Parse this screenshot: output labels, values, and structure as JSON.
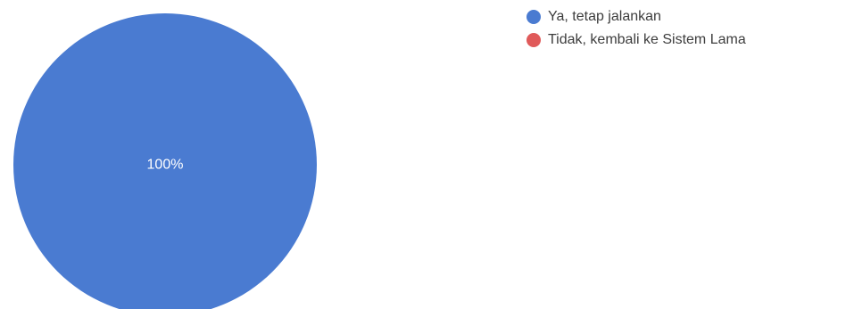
{
  "chart_data": {
    "type": "pie",
    "title": "",
    "legend_position": "top-right",
    "slices": [
      {
        "label": "Ya, tetap jalankan",
        "value": 100,
        "display": "100%",
        "color": "#4a7bd1"
      },
      {
        "label": "Tidak, kembali ke Sistem Lama",
        "value": 0,
        "display": "",
        "color": "#e05a5a"
      }
    ]
  }
}
